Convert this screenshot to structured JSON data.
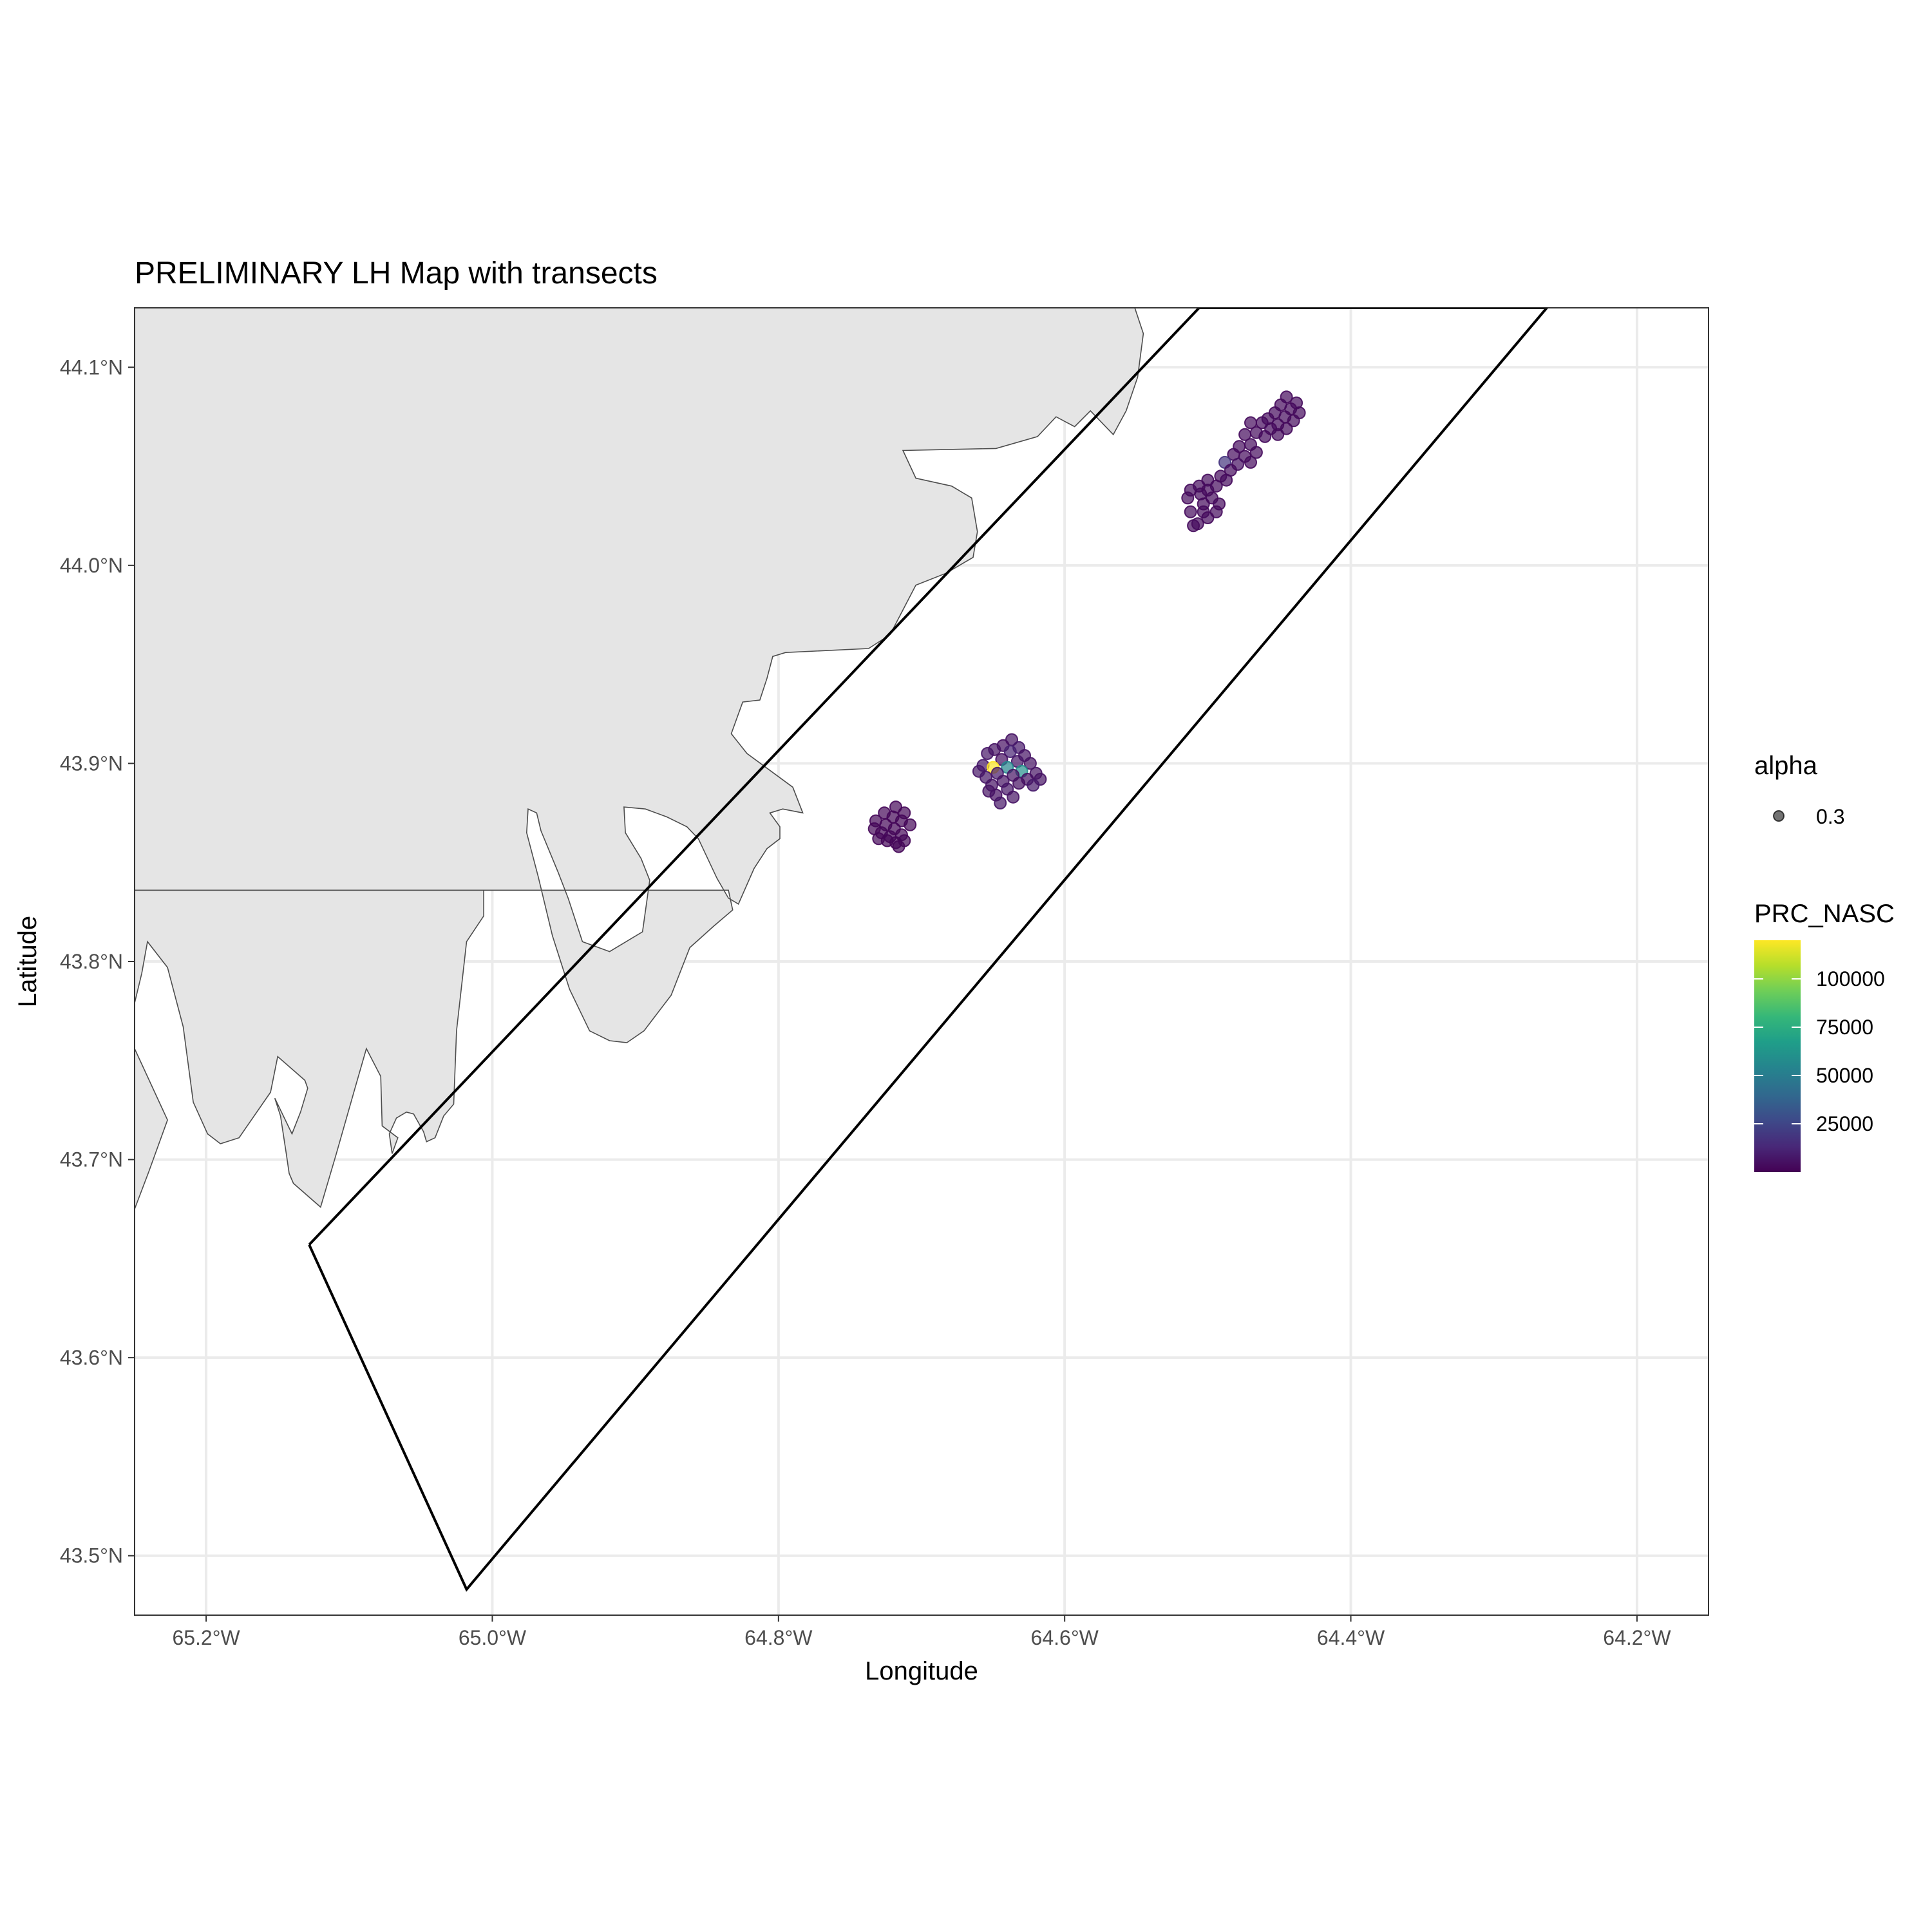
{
  "title": "PRELIMINARY LH Map with transects",
  "colors": {
    "land_fill": "#e5e5e5",
    "land_stroke": "#4d4d4d",
    "grid": "#ebebeb",
    "transect": "#000000",
    "viridis": [
      "#440154",
      "#482878",
      "#3e4989",
      "#31688e",
      "#26828e",
      "#1f9e89",
      "#35b779",
      "#6ece58",
      "#b5de2b",
      "#fde725"
    ]
  },
  "chart_data": {
    "type": "scatter",
    "title": "PRELIMINARY LH Map with transects",
    "xlabel": "Longitude",
    "ylabel": "Latitude",
    "xlim": [
      -65.25,
      -64.15
    ],
    "ylim": [
      43.47,
      44.13
    ],
    "x_ticks": [
      -65.2,
      -65.0,
      -64.8,
      -64.6,
      -64.4,
      -64.2
    ],
    "x_tick_labels": [
      "65.2°W",
      "65.0°W",
      "64.8°W",
      "64.6°W",
      "64.4°W",
      "64.2°W"
    ],
    "y_ticks": [
      44.1,
      44.0,
      43.9,
      43.8,
      43.7,
      43.6,
      43.5
    ],
    "y_tick_labels": [
      "44.1°N",
      "44.0°N",
      "43.9°N",
      "43.8°N",
      "43.7°N",
      "43.6°N",
      "43.5°N"
    ],
    "grid": true,
    "point_alpha": 0.7,
    "legend": {
      "placement": "right",
      "alpha_title": "alpha",
      "alpha_value": "0.3",
      "color_title": "PRC_NASC",
      "color_min": 0,
      "color_max": 120000,
      "color_breaks": [
        25000,
        50000,
        75000,
        100000
      ],
      "color_break_labels": [
        "25000",
        "50000",
        "75000",
        "100000"
      ]
    },
    "transect_polygon": [
      [
        -65.128,
        43.657
      ],
      [
        -64.506,
        44.13
      ],
      [
        -64.263,
        44.13
      ],
      [
        -65.018,
        43.483
      ],
      [
        -65.128,
        43.657
      ]
    ],
    "land_polygons": [
      [
        [
          -65.25,
          44.13
        ],
        [
          -64.551,
          44.13
        ],
        [
          -64.545,
          44.117
        ],
        [
          -64.549,
          44.095
        ],
        [
          -64.557,
          44.078
        ],
        [
          -64.566,
          44.066
        ],
        [
          -64.582,
          44.078
        ],
        [
          -64.593,
          44.07
        ],
        [
          -64.606,
          44.075
        ],
        [
          -64.619,
          44.065
        ],
        [
          -64.648,
          44.059
        ],
        [
          -64.713,
          44.058
        ],
        [
          -64.704,
          44.044
        ],
        [
          -64.679,
          44.04
        ],
        [
          -64.665,
          44.034
        ],
        [
          -64.661,
          44.017
        ],
        [
          -64.664,
          44.004
        ],
        [
          -64.683,
          43.996
        ],
        [
          -64.704,
          43.99
        ],
        [
          -64.722,
          43.965
        ],
        [
          -64.737,
          43.958
        ],
        [
          -64.795,
          43.956
        ],
        [
          -64.804,
          43.954
        ],
        [
          -64.808,
          43.943
        ],
        [
          -64.813,
          43.932
        ],
        [
          -64.825,
          43.931
        ],
        [
          -64.833,
          43.915
        ],
        [
          -64.822,
          43.905
        ],
        [
          -64.79,
          43.888
        ],
        [
          -64.783,
          43.875
        ],
        [
          -64.797,
          43.877
        ],
        [
          -64.806,
          43.875
        ],
        [
          -64.799,
          43.868
        ],
        [
          -64.799,
          43.862
        ],
        [
          -64.808,
          43.857
        ],
        [
          -64.817,
          43.847
        ],
        [
          -64.828,
          43.829
        ],
        [
          -64.835,
          43.832
        ],
        [
          -64.843,
          43.842
        ],
        [
          -64.856,
          43.862
        ],
        [
          -64.864,
          43.868
        ],
        [
          -64.878,
          43.873
        ],
        [
          -64.893,
          43.877
        ],
        [
          -64.908,
          43.878
        ],
        [
          -64.907,
          43.865
        ],
        [
          -64.896,
          43.852
        ],
        [
          -64.89,
          43.841
        ],
        [
          -64.895,
          43.815
        ],
        [
          -64.918,
          43.805
        ],
        [
          -64.937,
          43.81
        ],
        [
          -64.947,
          43.832
        ],
        [
          -64.954,
          43.845
        ],
        [
          -64.966,
          43.866
        ],
        [
          -64.969,
          43.875
        ],
        [
          -64.975,
          43.877
        ],
        [
          -64.976,
          43.865
        ],
        [
          -64.968,
          43.843
        ],
        [
          -64.958,
          43.813
        ],
        [
          -64.946,
          43.786
        ],
        [
          -64.932,
          43.765
        ],
        [
          -64.918,
          43.76
        ],
        [
          -64.906,
          43.759
        ],
        [
          -64.894,
          43.765
        ],
        [
          -64.875,
          43.783
        ],
        [
          -64.862,
          43.807
        ],
        [
          -64.845,
          43.818
        ],
        [
          -64.832,
          43.826
        ],
        [
          -64.835,
          43.836
        ],
        [
          -65.25,
          43.836
        ]
      ],
      [
        [
          -65.25,
          43.836
        ],
        [
          -65.006,
          43.836
        ],
        [
          -65.006,
          43.823
        ],
        [
          -65.018,
          43.81
        ],
        [
          -65.025,
          43.765
        ],
        [
          -65.027,
          43.728
        ],
        [
          -65.034,
          43.722
        ],
        [
          -65.04,
          43.711
        ],
        [
          -65.046,
          43.709
        ],
        [
          -65.048,
          43.714
        ],
        [
          -65.055,
          43.723
        ],
        [
          -65.06,
          43.724
        ],
        [
          -65.067,
          43.721
        ],
        [
          -65.072,
          43.713
        ],
        [
          -65.07,
          43.703
        ],
        [
          -65.066,
          43.711
        ],
        [
          -65.077,
          43.717
        ],
        [
          -65.078,
          43.742
        ],
        [
          -65.088,
          43.756
        ],
        [
          -65.096,
          43.736
        ],
        [
          -65.109,
          43.703
        ],
        [
          -65.12,
          43.676
        ],
        [
          -65.139,
          43.688
        ],
        [
          -65.142,
          43.693
        ],
        [
          -65.144,
          43.703
        ],
        [
          -65.148,
          43.722
        ],
        [
          -65.152,
          43.731
        ],
        [
          -65.14,
          43.713
        ],
        [
          -65.134,
          43.724
        ],
        [
          -65.129,
          43.736
        ],
        [
          -65.131,
          43.74
        ],
        [
          -65.15,
          43.752
        ],
        [
          -65.155,
          43.734
        ],
        [
          -65.177,
          43.711
        ],
        [
          -65.19,
          43.708
        ],
        [
          -65.199,
          43.713
        ],
        [
          -65.209,
          43.729
        ],
        [
          -65.216,
          43.767
        ],
        [
          -65.227,
          43.797
        ],
        [
          -65.241,
          43.81
        ],
        [
          -65.245,
          43.794
        ],
        [
          -65.25,
          43.779
        ]
      ],
      [
        [
          -65.25,
          43.756
        ],
        [
          -65.227,
          43.72
        ],
        [
          -65.24,
          43.694
        ],
        [
          -65.25,
          43.675
        ]
      ]
    ],
    "series": [
      {
        "points": [
          [
            -64.445,
            44.085,
            3000
          ],
          [
            -64.438,
            44.082,
            3000
          ],
          [
            -64.449,
            44.081,
            3000
          ],
          [
            -64.442,
            44.079,
            3000
          ],
          [
            -64.453,
            44.077,
            3000
          ],
          [
            -64.436,
            44.077,
            3000
          ],
          [
            -64.446,
            44.075,
            3000
          ],
          [
            -64.458,
            44.074,
            3000
          ],
          [
            -64.44,
            44.073,
            3000
          ],
          [
            -64.451,
            44.071,
            3000
          ],
          [
            -64.462,
            44.072,
            3000
          ],
          [
            -64.47,
            44.072,
            3000
          ],
          [
            -64.456,
            44.069,
            3000
          ],
          [
            -64.445,
            44.069,
            3000
          ],
          [
            -64.466,
            44.067,
            3000
          ],
          [
            -64.474,
            44.066,
            3000
          ],
          [
            -64.46,
            44.065,
            3000
          ],
          [
            -64.451,
            44.066,
            3000
          ],
          [
            -64.47,
            44.061,
            3000
          ],
          [
            -64.478,
            44.06,
            3000
          ],
          [
            -64.482,
            44.056,
            3000
          ],
          [
            -64.474,
            44.055,
            3000
          ],
          [
            -64.466,
            44.057,
            3000
          ],
          [
            -64.47,
            44.052,
            3000
          ],
          [
            -64.488,
            44.052,
            18000
          ],
          [
            -64.479,
            44.051,
            5000
          ],
          [
            -64.484,
            44.048,
            3000
          ],
          [
            -64.491,
            44.045,
            3000
          ],
          [
            -64.5,
            44.043,
            3000
          ],
          [
            -64.487,
            44.043,
            3000
          ],
          [
            -64.494,
            44.04,
            3000
          ],
          [
            -64.506,
            44.04,
            3000
          ],
          [
            -64.5,
            44.038,
            3000
          ],
          [
            -64.512,
            44.038,
            3000
          ],
          [
            -64.505,
            44.036,
            3000
          ],
          [
            -64.514,
            44.034,
            3000
          ],
          [
            -64.497,
            44.034,
            3000
          ],
          [
            -64.503,
            44.031,
            3000
          ],
          [
            -64.512,
            44.027,
            3000
          ],
          [
            -64.492,
            44.031,
            3000
          ],
          [
            -64.503,
            44.027,
            3000
          ],
          [
            -64.494,
            44.027,
            3000
          ],
          [
            -64.5,
            44.024,
            3000
          ],
          [
            -64.507,
            44.021,
            3000
          ],
          [
            -64.51,
            44.02,
            3000
          ]
        ]
      },
      {
        "points": [
          [
            -64.637,
            43.912,
            6000
          ],
          [
            -64.632,
            43.908,
            8000
          ],
          [
            -64.643,
            43.909,
            5000
          ],
          [
            -64.649,
            43.907,
            6000
          ],
          [
            -64.638,
            43.906,
            12000
          ],
          [
            -64.628,
            43.904,
            6000
          ],
          [
            -64.654,
            43.905,
            7000
          ],
          [
            -64.644,
            43.902,
            5000
          ],
          [
            -64.633,
            43.901,
            7000
          ],
          [
            -64.624,
            43.9,
            6000
          ],
          [
            -64.657,
            43.899,
            8000
          ],
          [
            -64.65,
            43.898,
            120000
          ],
          [
            -64.64,
            43.898,
            55000
          ],
          [
            -64.63,
            43.896,
            60000
          ],
          [
            -64.62,
            43.895,
            6000
          ],
          [
            -64.66,
            43.896,
            7000
          ],
          [
            -64.647,
            43.895,
            8000
          ],
          [
            -64.636,
            43.894,
            6000
          ],
          [
            -64.626,
            43.892,
            5000
          ],
          [
            -64.617,
            43.892,
            6000
          ],
          [
            -64.655,
            43.893,
            7000
          ],
          [
            -64.643,
            43.891,
            6000
          ],
          [
            -64.632,
            43.89,
            5000
          ],
          [
            -64.622,
            43.889,
            8000
          ],
          [
            -64.651,
            43.889,
            6000
          ],
          [
            -64.64,
            43.887,
            7000
          ],
          [
            -64.648,
            43.884,
            5000
          ],
          [
            -64.636,
            43.883,
            6000
          ],
          [
            -64.645,
            43.88,
            7000
          ],
          [
            -64.653,
            43.886,
            6000
          ]
        ]
      },
      {
        "points": [
          [
            -64.718,
            43.878,
            2000
          ],
          [
            -64.712,
            43.875,
            2000
          ],
          [
            -64.726,
            43.875,
            2000
          ],
          [
            -64.72,
            43.873,
            2000
          ],
          [
            -64.732,
            43.871,
            2000
          ],
          [
            -64.714,
            43.871,
            2000
          ],
          [
            -64.725,
            43.869,
            2000
          ],
          [
            -64.708,
            43.869,
            2000
          ],
          [
            -64.719,
            43.867,
            2000
          ],
          [
            -64.733,
            43.867,
            2000
          ],
          [
            -64.728,
            43.865,
            2000
          ],
          [
            -64.714,
            43.864,
            2000
          ],
          [
            -64.722,
            43.863,
            2000
          ],
          [
            -64.73,
            43.862,
            2000
          ],
          [
            -64.712,
            43.861,
            2000
          ],
          [
            -64.718,
            43.86,
            2000
          ],
          [
            -64.724,
            43.861,
            2000
          ],
          [
            -64.716,
            43.858,
            2000
          ]
        ]
      }
    ]
  }
}
